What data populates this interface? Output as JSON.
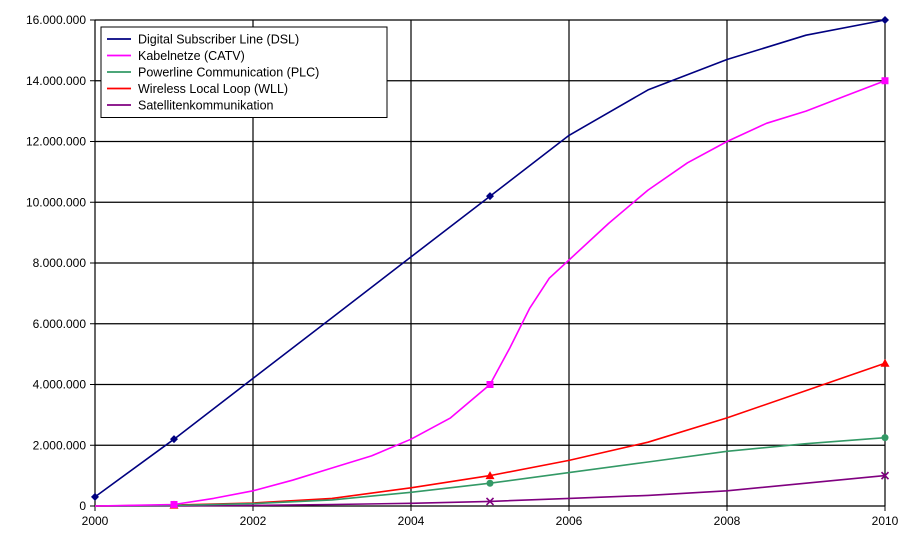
{
  "chart_data": {
    "type": "line",
    "xlim": [
      2000,
      2010
    ],
    "ylim": [
      0,
      16000000
    ],
    "x_ticks": [
      2000,
      2002,
      2004,
      2006,
      2008,
      2010
    ],
    "x_tick_labels": [
      "2000",
      "2002",
      "2004",
      "2006",
      "2008",
      "2010"
    ],
    "y_ticks": [
      0,
      2000000,
      4000000,
      6000000,
      8000000,
      10000000,
      12000000,
      14000000,
      16000000
    ],
    "y_tick_labels": [
      "0",
      "2.000.000",
      "4.000.000",
      "6.000.000",
      "8.000.000",
      "10.000.000",
      "12.000.000",
      "14.000.000",
      "16.000.000"
    ],
    "grid": true,
    "legend_position": "top-left",
    "series": [
      {
        "name": "Digital Subscriber Line (DSL)",
        "color": "#000080",
        "marker": "diamond",
        "marker_x": [
          2000,
          2001,
          2005,
          2010
        ],
        "points": [
          [
            2000,
            300000
          ],
          [
            2001,
            2200000
          ],
          [
            2002,
            4200000
          ],
          [
            2003,
            6200000
          ],
          [
            2004,
            8200000
          ],
          [
            2005,
            10200000
          ],
          [
            2006,
            12200000
          ],
          [
            2007,
            13700000
          ],
          [
            2008,
            14700000
          ],
          [
            2009,
            15500000
          ],
          [
            2010,
            16000000
          ]
        ]
      },
      {
        "name": "Kabelnetze (CATV)",
        "color": "#ff00ff",
        "marker": "square",
        "marker_x": [
          2001,
          2005,
          2010
        ],
        "points": [
          [
            2000,
            0
          ],
          [
            2001,
            50000
          ],
          [
            2001.5,
            250000
          ],
          [
            2002,
            500000
          ],
          [
            2002.5,
            850000
          ],
          [
            2003,
            1250000
          ],
          [
            2003.5,
            1650000
          ],
          [
            2004,
            2200000
          ],
          [
            2004.5,
            2900000
          ],
          [
            2005,
            4000000
          ],
          [
            2005.25,
            5200000
          ],
          [
            2005.5,
            6500000
          ],
          [
            2005.75,
            7500000
          ],
          [
            2006,
            8100000
          ],
          [
            2006.5,
            9300000
          ],
          [
            2007,
            10400000
          ],
          [
            2007.5,
            11300000
          ],
          [
            2008,
            12000000
          ],
          [
            2008.5,
            12600000
          ],
          [
            2009,
            13000000
          ],
          [
            2009.5,
            13500000
          ],
          [
            2010,
            14000000
          ]
        ]
      },
      {
        "name": "Powerline Communication (PLC)",
        "color": "#339966",
        "marker": "circle",
        "marker_x": [
          2005,
          2010
        ],
        "points": [
          [
            2000,
            0
          ],
          [
            2001,
            20000
          ],
          [
            2002,
            80000
          ],
          [
            2003,
            200000
          ],
          [
            2004,
            450000
          ],
          [
            2005,
            750000
          ],
          [
            2006,
            1100000
          ],
          [
            2007,
            1450000
          ],
          [
            2008,
            1800000
          ],
          [
            2009,
            2050000
          ],
          [
            2010,
            2250000
          ]
        ]
      },
      {
        "name": "Wireless Local Loop (WLL)",
        "color": "#ff0000",
        "marker": "triangle",
        "marker_x": [
          2001,
          2005,
          2010
        ],
        "points": [
          [
            2000,
            0
          ],
          [
            2001,
            30000
          ],
          [
            2002,
            100000
          ],
          [
            2003,
            250000
          ],
          [
            2004,
            600000
          ],
          [
            2005,
            1000000
          ],
          [
            2006,
            1500000
          ],
          [
            2007,
            2100000
          ],
          [
            2008,
            2900000
          ],
          [
            2009,
            3800000
          ],
          [
            2010,
            4700000
          ]
        ]
      },
      {
        "name": "Satellitenkommunikation",
        "color": "#800080",
        "marker": "x",
        "marker_x": [
          2005,
          2010
        ],
        "points": [
          [
            2000,
            0
          ],
          [
            2001,
            5000
          ],
          [
            2002,
            20000
          ],
          [
            2003,
            50000
          ],
          [
            2004,
            90000
          ],
          [
            2005,
            150000
          ],
          [
            2006,
            250000
          ],
          [
            2007,
            350000
          ],
          [
            2008,
            500000
          ],
          [
            2009,
            750000
          ],
          [
            2010,
            1000000
          ]
        ]
      }
    ]
  }
}
